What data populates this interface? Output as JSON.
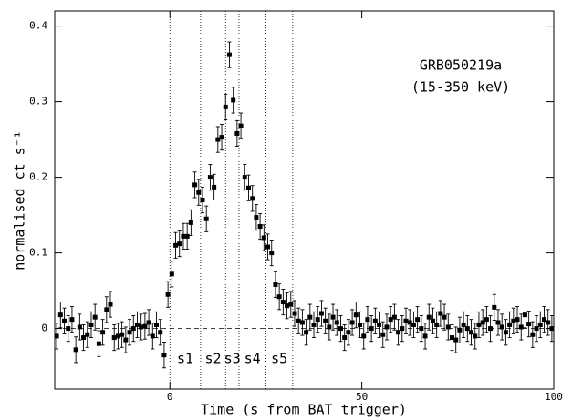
{
  "chart_data": {
    "type": "errorbar",
    "annotations": [
      "GRB050219a",
      "(15-350 keV)"
    ],
    "xlabel": "Time (s from BAT trigger)",
    "ylabel": "normalised ct s⁻¹",
    "xlim": [
      -30,
      100
    ],
    "ylim": [
      -0.08,
      0.42
    ],
    "xticks": [
      0,
      50,
      100
    ],
    "yticks": [
      0,
      0.1,
      0.2,
      0.3,
      0.4
    ],
    "reference_line": 0,
    "segment_boundaries": [
      0,
      8,
      14.5,
      18,
      25,
      32
    ],
    "segment_labels": [
      "s1",
      "s2",
      "s3",
      "s4",
      "s5"
    ],
    "yerr": 0.017,
    "color": "#000000",
    "x": [
      -29.5,
      -28.5,
      -27.5,
      -26.5,
      -25.5,
      -24.5,
      -23.5,
      -22.5,
      -21.5,
      -20.5,
      -19.5,
      -18.5,
      -17.5,
      -16.5,
      -15.5,
      -14.5,
      -13.5,
      -12.5,
      -11.5,
      -10.5,
      -9.5,
      -8.5,
      -7.5,
      -6.5,
      -5.5,
      -4.5,
      -3.5,
      -2.5,
      -1.5,
      -0.5,
      0.5,
      1.5,
      2.5,
      3.5,
      4.5,
      5.5,
      6.5,
      7.5,
      8.5,
      9.5,
      10.5,
      11.5,
      12.5,
      13.5,
      14.5,
      15.5,
      16.5,
      17.5,
      18.5,
      19.5,
      20.5,
      21.5,
      22.5,
      23.5,
      24.5,
      25.5,
      26.5,
      27.5,
      28.5,
      29.5,
      30.5,
      31.5,
      32.5,
      33.5,
      34.5,
      35.5,
      36.5,
      37.5,
      38.5,
      39.5,
      40.5,
      41.5,
      42.5,
      43.5,
      44.5,
      45.5,
      46.5,
      47.5,
      48.5,
      49.5,
      50.5,
      51.5,
      52.5,
      53.5,
      54.5,
      55.5,
      56.5,
      57.5,
      58.5,
      59.5,
      60.5,
      61.5,
      62.5,
      63.5,
      64.5,
      65.5,
      66.5,
      67.5,
      68.5,
      69.5,
      70.5,
      71.5,
      72.5,
      73.5,
      74.5,
      75.5,
      76.5,
      77.5,
      78.5,
      79.5,
      80.5,
      81.5,
      82.5,
      83.5,
      84.5,
      85.5,
      86.5,
      87.5,
      88.5,
      89.5,
      90.5,
      91.5,
      92.5,
      93.5,
      94.5,
      95.5,
      96.5,
      97.5,
      98.5,
      99.5
    ],
    "series": [
      {
        "values": [
          -0.01,
          0.018,
          0.01,
          0.0,
          0.012,
          -0.028,
          0.002,
          -0.012,
          -0.008,
          0.005,
          0.015,
          -0.02,
          -0.005,
          0.025,
          0.032,
          -0.012,
          -0.01,
          -0.008,
          -0.015,
          -0.005,
          0.0,
          0.005,
          0.002,
          0.003,
          0.008,
          -0.01,
          0.005,
          -0.005,
          -0.035,
          0.045,
          0.072,
          0.11,
          0.112,
          0.122,
          0.122,
          0.14,
          0.19,
          0.18,
          0.17,
          0.145,
          0.2,
          0.187,
          0.25,
          0.253,
          0.293,
          0.362,
          0.302,
          0.258,
          0.268,
          0.2,
          0.186,
          0.172,
          0.147,
          0.135,
          0.12,
          0.108,
          0.1,
          0.058,
          0.042,
          0.035,
          0.03,
          0.032,
          0.02,
          0.01,
          0.008,
          -0.005,
          0.015,
          0.005,
          0.012,
          0.02,
          0.01,
          0.002,
          0.015,
          0.008,
          0.0,
          -0.012,
          -0.005,
          0.008,
          0.018,
          0.005,
          -0.01,
          0.012,
          0.0,
          0.01,
          0.005,
          -0.008,
          0.002,
          0.012,
          0.015,
          -0.005,
          0.0,
          0.01,
          0.008,
          0.005,
          0.012,
          0.0,
          -0.01,
          0.015,
          0.01,
          0.005,
          0.02,
          0.015,
          0.002,
          -0.012,
          -0.015,
          -0.002,
          0.005,
          0.0,
          -0.005,
          -0.01,
          0.005,
          0.008,
          0.012,
          0.0,
          0.028,
          0.008,
          0.002,
          -0.005,
          0.005,
          0.01,
          0.012,
          0.002,
          0.018,
          0.006,
          -0.008,
          0.0,
          0.005,
          0.012,
          0.008,
          0.0
        ]
      }
    ]
  }
}
